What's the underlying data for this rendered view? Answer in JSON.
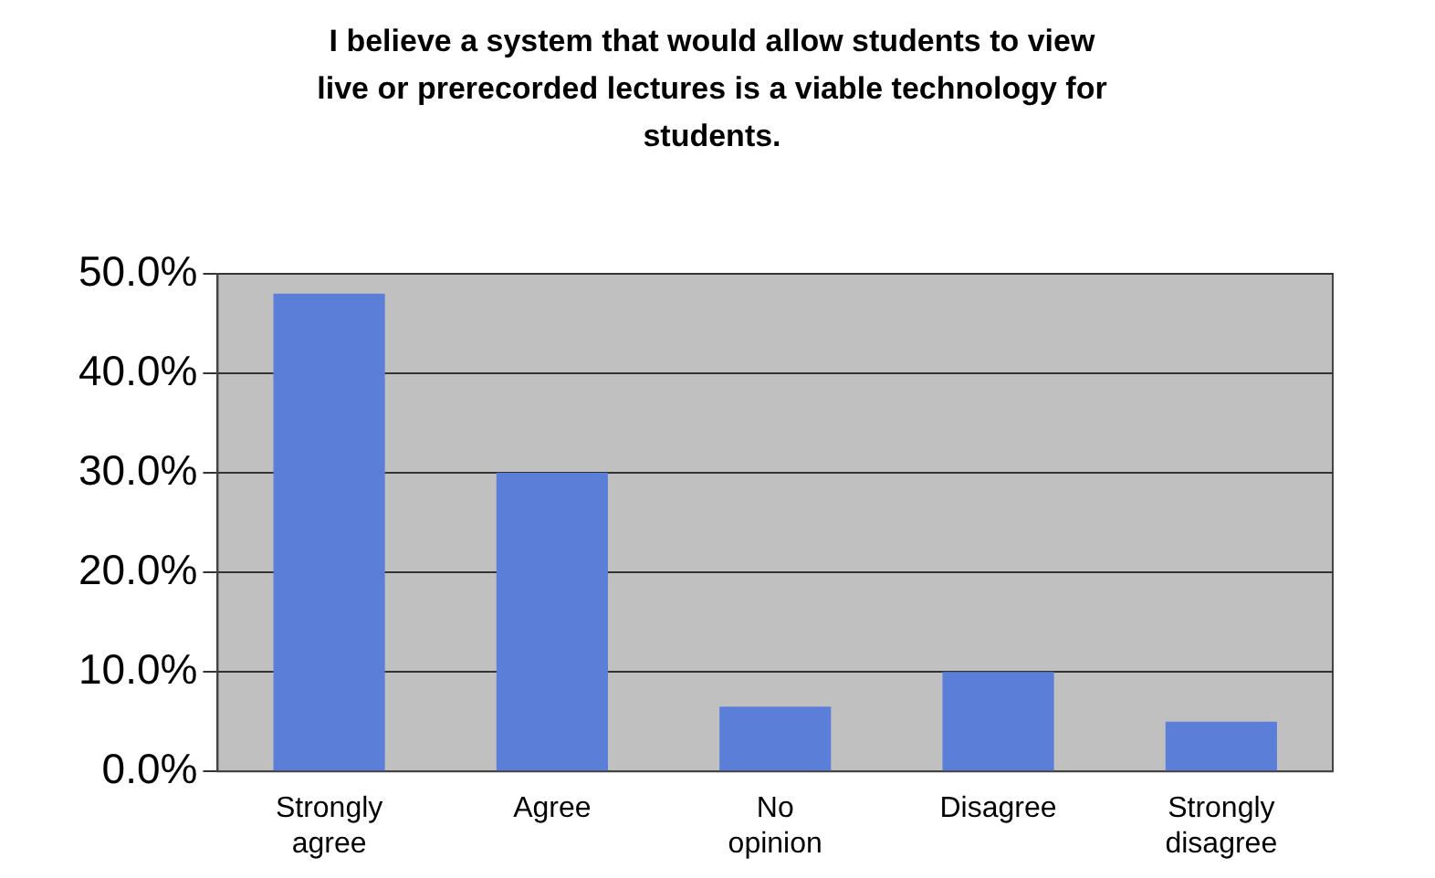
{
  "chart_data": {
    "type": "bar",
    "title": "I believe a system that would allow students to view live or prerecorded lectures is a viable technology for students.",
    "categories": [
      "Strongly agree",
      "Agree",
      "No opinion",
      "Disagree",
      "Strongly disagree"
    ],
    "values": [
      48,
      30,
      6.5,
      10,
      5
    ],
    "color": "#5b7fd9",
    "ylim": [
      0,
      50
    ],
    "yticks": [
      {
        "value": 0,
        "label": "0.0%"
      },
      {
        "value": 10,
        "label": "10.0%"
      },
      {
        "value": 20,
        "label": "20.0%"
      },
      {
        "value": 30,
        "label": "30.0%"
      },
      {
        "value": 40,
        "label": "40.0%"
      },
      {
        "value": 50,
        "label": "50.0%"
      }
    ],
    "grid": "y",
    "legend": false
  }
}
